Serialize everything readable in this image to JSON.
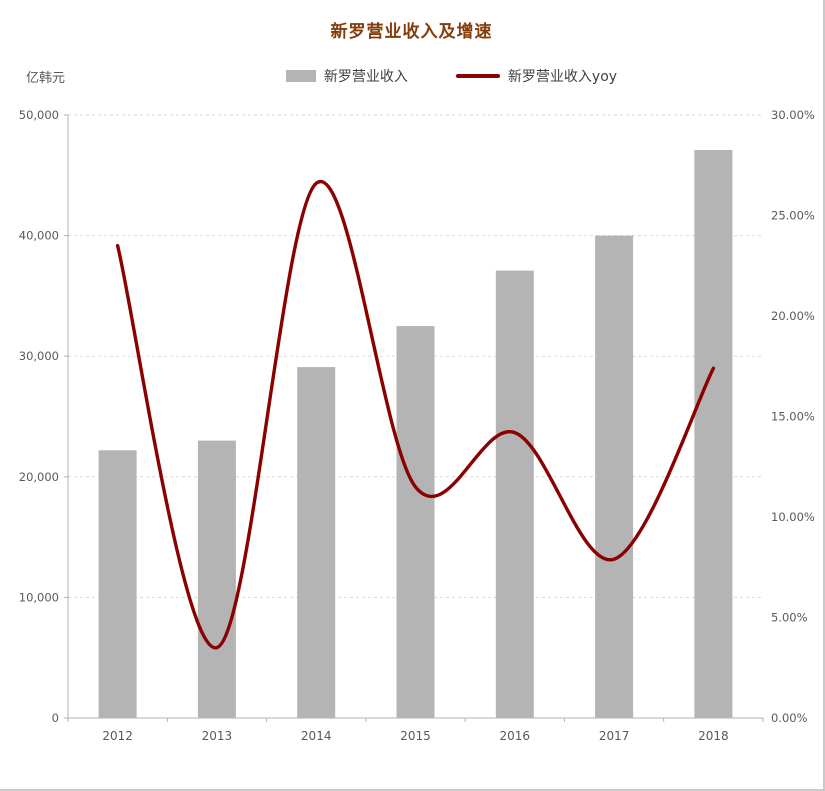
{
  "chart_data": {
    "type": "bar",
    "combo": "bar+line dual axis",
    "title": "新罗营业收入及增速",
    "unit_label": "亿韩元",
    "categories": [
      "2012",
      "2013",
      "2014",
      "2015",
      "2016",
      "2017",
      "2018"
    ],
    "series": [
      {
        "name": "新罗营业收入",
        "type": "bar",
        "axis": "left",
        "values": [
          22200,
          23000,
          29100,
          32500,
          37100,
          40000,
          47100
        ],
        "color": "#b4b4b4"
      },
      {
        "name": "新罗营业收入yoy",
        "type": "line",
        "axis": "right",
        "values_percent": [
          23.5,
          3.5,
          26.6,
          11.5,
          14.2,
          7.9,
          17.4
        ],
        "color": "#8b0000"
      }
    ],
    "left_axis": {
      "min": 0,
      "max": 50000,
      "step": 10000,
      "tick_labels": [
        "0",
        "10,000",
        "20,000",
        "30,000",
        "40,000",
        "50,000"
      ]
    },
    "right_axis": {
      "min": 0,
      "max": 30,
      "step": 5,
      "tick_labels": [
        "0.00%",
        "5.00%",
        "10.00%",
        "15.00%",
        "20.00%",
        "25.00%",
        "30.00%"
      ]
    },
    "grid": "dashed horizontal lines at primary-axis steps",
    "legend_position": "top-center"
  },
  "colors": {
    "title": "#843c0c",
    "axis_text": "#595959",
    "legend_text": "#404040",
    "gridline": "#d9d9d9",
    "axis_line": "#b3b3b3",
    "background": "#ffffff"
  }
}
